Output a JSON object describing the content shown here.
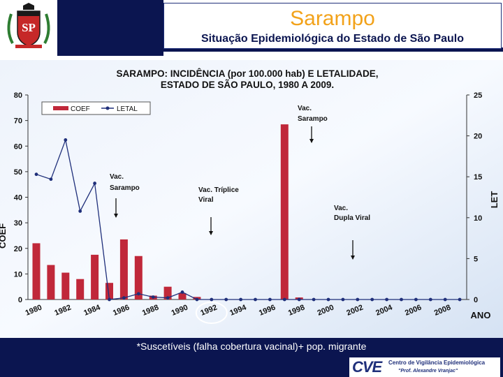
{
  "slide": {
    "title": "Sarampo",
    "subtitle": "Situação Epidemiológica do Estado de São Paulo",
    "footer_note": "*Suscetíveis (falha cobertura vacinal)+ pop. migrante",
    "colors": {
      "title": "#f2a21a",
      "navy": "#0b1550",
      "bar": "#c0283a",
      "line": "#1f2f7a"
    }
  },
  "logo": {
    "seal_letters": "SP",
    "cve_mark": "CVE",
    "cve_name": "Centro de Vigilância Epidemiológica",
    "cve_tribute": "\"Prof. Alexandre Vranjac\""
  },
  "chart_data": {
    "type": "bar",
    "title_line1": "SARAMPO: INCIDÊNCIA (por 100.000 hab) E LETALIDADE,",
    "title_line2": "ESTADO DE SÃO PAULO, 1980 A 2009.",
    "ylabel": "COEF",
    "y2label": "LET",
    "xlabel": "ANO",
    "ylim": [
      0,
      80
    ],
    "y_ticks": [
      0,
      10,
      20,
      30,
      40,
      50,
      60,
      70,
      80
    ],
    "y2lim": [
      0,
      25
    ],
    "y2_ticks": [
      0,
      5,
      10,
      15,
      20,
      25
    ],
    "x_tick_labels": [
      "1980",
      "1982",
      "1984",
      "1986",
      "1988",
      "1990",
      "1992",
      "1994",
      "1996",
      "1998",
      "2000",
      "2002",
      "2004",
      "2006",
      "2008"
    ],
    "highlighted_tick": "1992",
    "legend": [
      "COEF",
      "LETAL"
    ],
    "legend_position": "top-left",
    "grid": false,
    "x": [
      1980,
      1981,
      1982,
      1983,
      1984,
      1985,
      1986,
      1987,
      1988,
      1989,
      1990,
      1991,
      1992,
      1993,
      1994,
      1995,
      1996,
      1997,
      1998,
      1999,
      2000,
      2001,
      2002,
      2003,
      2004,
      2005,
      2006,
      2007,
      2008,
      2009
    ],
    "series": [
      {
        "name": "COEF",
        "kind": "bar",
        "axis": "left",
        "values": [
          22,
          13.5,
          10.5,
          8,
          17.5,
          6.5,
          23.5,
          17,
          1.5,
          5,
          2.5,
          1,
          0.1,
          0.1,
          0.1,
          0.1,
          0.1,
          68.5,
          0.8,
          0.1,
          0.1,
          0,
          0,
          0,
          0,
          0,
          0,
          0,
          0,
          0
        ]
      },
      {
        "name": "LETAL",
        "kind": "line",
        "axis": "right",
        "values": [
          15.3,
          14.7,
          19.5,
          10.8,
          14.2,
          0,
          0.2,
          0.7,
          0.3,
          0.2,
          0.9,
          0,
          0,
          0,
          0,
          0,
          0,
          0,
          0,
          0,
          0,
          0,
          0,
          0,
          0,
          0,
          0,
          0,
          0,
          0
        ]
      }
    ],
    "annotations": [
      {
        "line1": "Vac.",
        "line2": "Sarampo",
        "year": 1985.5
      },
      {
        "line1": "Vac. Tríplice",
        "line2": "Viral",
        "year": 1992.5
      },
      {
        "line1": "Vac.",
        "line2": "Sarampo",
        "year": 1997.8
      },
      {
        "line1": "Vac.",
        "line2": "Dupla Viral",
        "year": 2001.7
      }
    ]
  }
}
